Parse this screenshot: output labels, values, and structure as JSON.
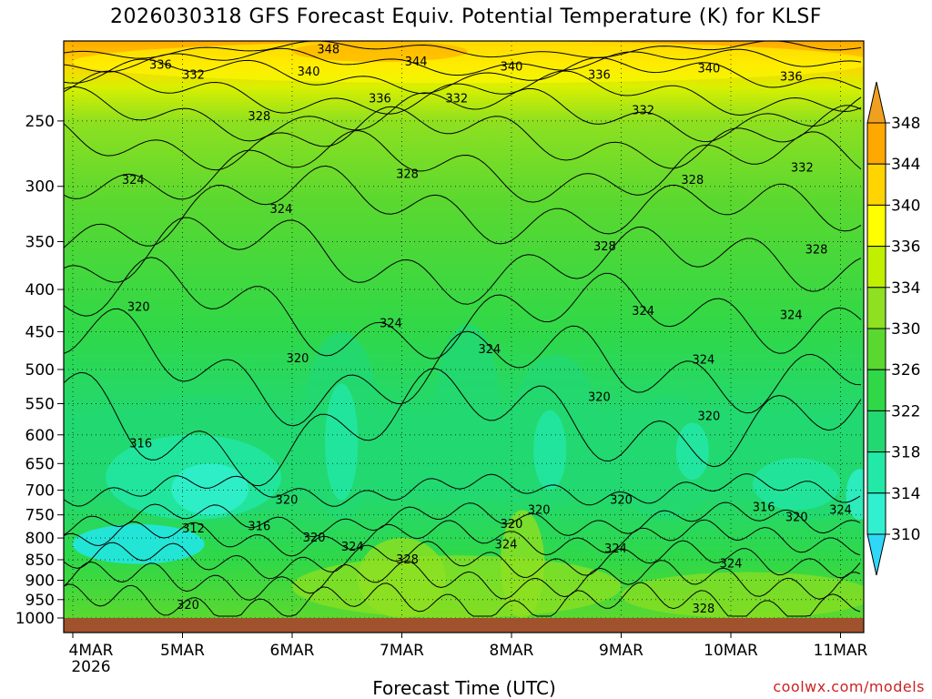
{
  "title": "2026030318 GFS Forecast Equiv. Potential Temperature (K) for KLSF",
  "credit": "coolwx.com/models",
  "chart_data": {
    "type": "heatmap",
    "title": "2026030318 GFS Forecast Equiv. Potential Temperature (K) for KLSF",
    "xlabel": "Forecast Time (UTC)",
    "ylabel": "",
    "y_scale": "log-pressure",
    "ylim": [
      1000,
      200
    ],
    "xlim": [
      "2026-03-04 00",
      "2026-03-11 06"
    ],
    "x_ticks": [
      {
        "label": "4MAR",
        "sub": "2026",
        "day": 0
      },
      {
        "label": "5MAR",
        "sub": "",
        "day": 1
      },
      {
        "label": "6MAR",
        "sub": "",
        "day": 2
      },
      {
        "label": "7MAR",
        "sub": "",
        "day": 3
      },
      {
        "label": "8MAR",
        "sub": "",
        "day": 4
      },
      {
        "label": "9MAR",
        "sub": "",
        "day": 5
      },
      {
        "label": "10MAR",
        "sub": "",
        "day": 6
      },
      {
        "label": "11MAR",
        "sub": "",
        "day": 7
      }
    ],
    "y_ticks": [
      250,
      300,
      350,
      400,
      450,
      500,
      550,
      600,
      650,
      700,
      750,
      800,
      850,
      900,
      950,
      1000
    ],
    "grid": "dotted",
    "colorbar": {
      "levels": [
        310,
        314,
        318,
        322,
        326,
        330,
        334,
        336,
        340,
        344,
        348
      ],
      "colors": [
        "#20e8f8",
        "#30f0d0",
        "#22e8a8",
        "#22d870",
        "#30d848",
        "#5ad830",
        "#8ee020",
        "#c0f000",
        "#ffff00",
        "#ffd400",
        "#ffa800"
      ],
      "min_color": "#30d8f8",
      "max_color": "#f0a020"
    },
    "surface_color": "#a0522d",
    "surface_label": "1000",
    "contour_labels": [
      {
        "value": "348",
        "day": 2.33,
        "p": 205
      },
      {
        "value": "344",
        "day": 3.13,
        "p": 212
      },
      {
        "value": "340",
        "day": 2.15,
        "p": 218
      },
      {
        "value": "340",
        "day": 4.0,
        "p": 215
      },
      {
        "value": "340",
        "day": 5.8,
        "p": 216
      },
      {
        "value": "336",
        "day": 0.8,
        "p": 214
      },
      {
        "value": "336",
        "day": 2.8,
        "p": 235
      },
      {
        "value": "336",
        "day": 4.8,
        "p": 220
      },
      {
        "value": "336",
        "day": 6.55,
        "p": 221
      },
      {
        "value": "332",
        "day": 1.1,
        "p": 220
      },
      {
        "value": "332",
        "day": 3.5,
        "p": 235
      },
      {
        "value": "332",
        "day": 5.2,
        "p": 243
      },
      {
        "value": "332",
        "day": 6.65,
        "p": 285
      },
      {
        "value": "328",
        "day": 1.7,
        "p": 247
      },
      {
        "value": "328",
        "day": 3.05,
        "p": 290
      },
      {
        "value": "328",
        "day": 5.65,
        "p": 295
      },
      {
        "value": "328",
        "day": 4.85,
        "p": 355
      },
      {
        "value": "328",
        "day": 6.78,
        "p": 358
      },
      {
        "value": "324",
        "day": 0.55,
        "p": 295
      },
      {
        "value": "324",
        "day": 1.9,
        "p": 320
      },
      {
        "value": "324",
        "day": 2.9,
        "p": 440
      },
      {
        "value": "324",
        "day": 3.8,
        "p": 473
      },
      {
        "value": "324",
        "day": 5.2,
        "p": 425
      },
      {
        "value": "324",
        "day": 5.75,
        "p": 487
      },
      {
        "value": "324",
        "day": 6.55,
        "p": 430
      },
      {
        "value": "320",
        "day": 0.6,
        "p": 420
      },
      {
        "value": "320",
        "day": 2.05,
        "p": 485
      },
      {
        "value": "320",
        "day": 4.8,
        "p": 540
      },
      {
        "value": "320",
        "day": 5.8,
        "p": 570
      },
      {
        "value": "316",
        "day": 0.62,
        "p": 615
      },
      {
        "value": "316",
        "day": 6.3,
        "p": 735
      },
      {
        "value": "320",
        "day": 1.95,
        "p": 720
      },
      {
        "value": "320",
        "day": 4.25,
        "p": 740
      },
      {
        "value": "320",
        "day": 5.0,
        "p": 720
      },
      {
        "value": "320",
        "day": 6.6,
        "p": 755
      },
      {
        "value": "324",
        "day": 7.0,
        "p": 740
      },
      {
        "value": "316",
        "day": 1.7,
        "p": 775
      },
      {
        "value": "312",
        "day": 1.1,
        "p": 780
      },
      {
        "value": "320",
        "day": 2.2,
        "p": 800
      },
      {
        "value": "320",
        "day": 4.0,
        "p": 770
      },
      {
        "value": "324",
        "day": 2.55,
        "p": 820
      },
      {
        "value": "324",
        "day": 3.95,
        "p": 815
      },
      {
        "value": "324",
        "day": 4.95,
        "p": 825
      },
      {
        "value": "324",
        "day": 6.0,
        "p": 860
      },
      {
        "value": "328",
        "day": 3.05,
        "p": 850
      },
      {
        "value": "320",
        "day": 1.05,
        "p": 965
      },
      {
        "value": "328",
        "day": 5.75,
        "p": 975
      }
    ]
  }
}
